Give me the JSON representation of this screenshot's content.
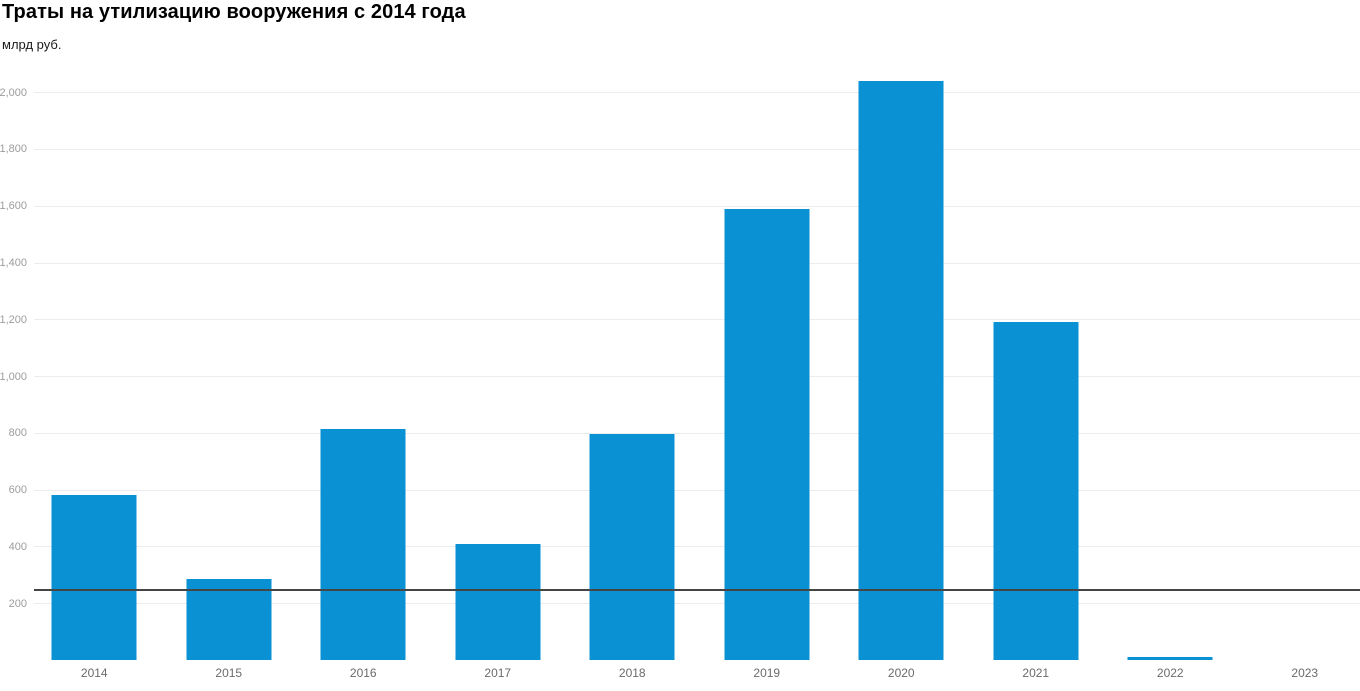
{
  "header": {
    "title": "Траты на утилизацию вооружения с 2014 года",
    "subtitle": "млрд руб."
  },
  "chart_data": {
    "type": "bar",
    "title": "Траты на утилизацию вооружения с 2014 года",
    "ylabel": "млрд руб.",
    "xlabel": "",
    "categories": [
      "2014",
      "2015",
      "2016",
      "2017",
      "2018",
      "2019",
      "2020",
      "2021",
      "2022",
      "2023"
    ],
    "values": [
      580,
      285,
      815,
      410,
      795,
      1590,
      2040,
      1190,
      10,
      0
    ],
    "ylim": [
      0,
      2078
    ],
    "yticks": [
      200,
      400,
      600,
      800,
      1000,
      1200,
      1400,
      1600,
      1800,
      2000
    ],
    "ytick_labels": [
      "200",
      "400",
      "600",
      "800",
      "1,000",
      "1,200",
      "1,400",
      "1,600",
      "1,800",
      "2,000"
    ],
    "grid": "horizontal",
    "legend": "none"
  },
  "colors": {
    "bar": "#0991d3",
    "gridline": "#ececec",
    "axis_line": "#454545",
    "ytick_text": "#9d9d9d",
    "xtick_text": "#6b6b6b",
    "title_text": "#000000"
  }
}
